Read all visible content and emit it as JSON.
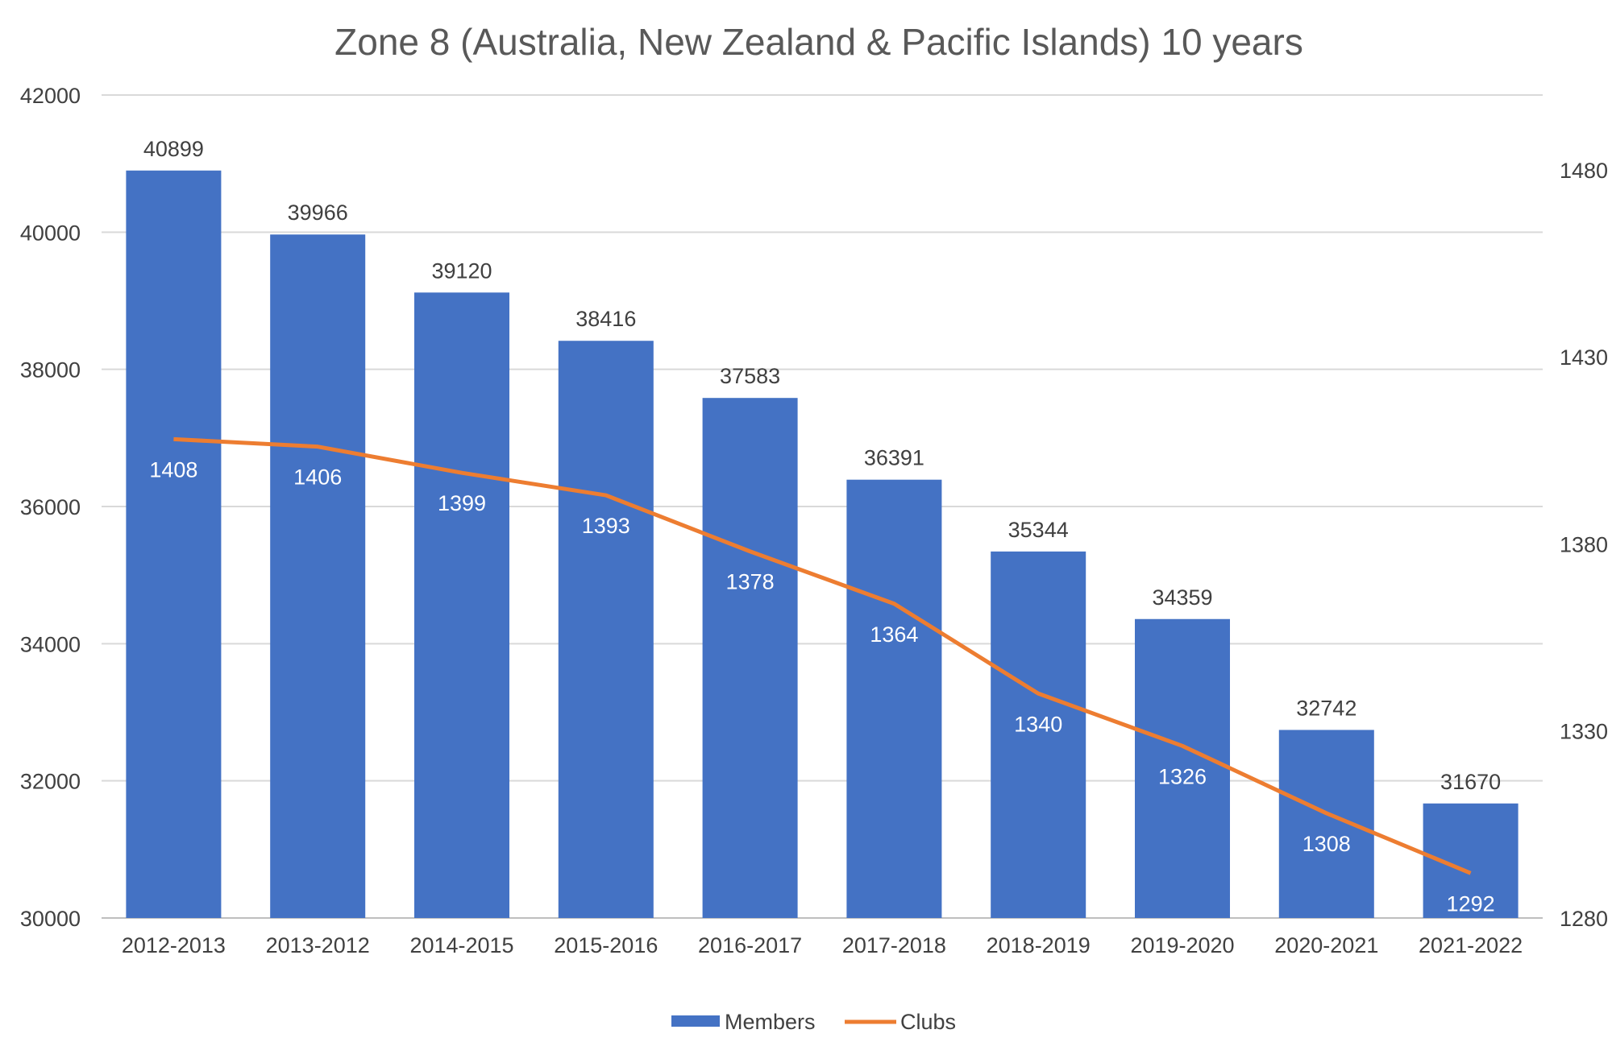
{
  "chart_data": {
    "type": "bar",
    "title": "Zone 8 (Australia, New Zealand & Pacific Islands) 10 years",
    "categories": [
      "2012-2013",
      "2013-2012",
      "2014-2015",
      "2015-2016",
      "2016-2017",
      "2017-2018",
      "2018-2019",
      "2019-2020",
      "2020-2021",
      "2021-2022"
    ],
    "series": [
      {
        "name": "Members",
        "type": "bar",
        "axis": "left",
        "color": "#4472C4",
        "values": [
          40899,
          39966,
          39120,
          38416,
          37583,
          36391,
          35344,
          34359,
          32742,
          31670
        ]
      },
      {
        "name": "Clubs",
        "type": "line",
        "axis": "right",
        "color": "#ED7D31",
        "values": [
          1408,
          1406,
          1399,
          1393,
          1378,
          1364,
          1340,
          1326,
          1308,
          1292
        ]
      }
    ],
    "y_left": {
      "min": 30000,
      "max": 42000,
      "ticks": [
        30000,
        32000,
        34000,
        36000,
        38000,
        40000,
        42000
      ]
    },
    "y_right": {
      "min": 1280,
      "max": 1500,
      "ticks": [
        1280,
        1330,
        1380,
        1430,
        1480
      ]
    },
    "grid": true,
    "legend": "bottom",
    "xlabel": "",
    "ylabel": ""
  }
}
